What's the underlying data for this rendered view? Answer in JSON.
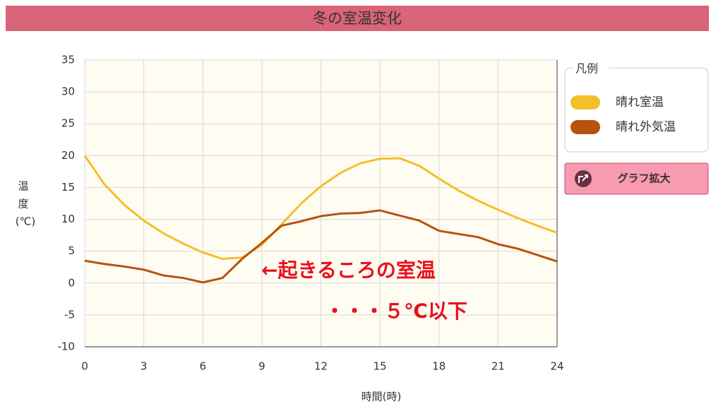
{
  "chart_data": {
    "type": "line",
    "title": "冬の室温変化",
    "x_label": "時間(時)",
    "y_label": [
      "温",
      "度",
      "(℃)"
    ],
    "x": [
      0,
      1,
      2,
      3,
      4,
      5,
      6,
      7,
      8,
      9,
      10,
      11,
      12,
      13,
      14,
      15,
      16,
      17,
      18,
      19,
      20,
      21,
      22,
      23,
      24
    ],
    "series": [
      {
        "name": "晴れ室温",
        "color": "#f2c02a",
        "values": [
          20,
          15.5,
          12.3,
          9.8,
          7.8,
          6.2,
          4.8,
          3.8,
          4.0,
          6.0,
          9.2,
          12.5,
          15.2,
          17.3,
          18.8,
          19.5,
          19.6,
          18.4,
          16.4,
          14.5,
          12.9,
          11.5,
          10.2,
          9.0,
          7.9
        ]
      },
      {
        "name": "晴れ外気温",
        "color": "#b8520f",
        "values": [
          3.5,
          3.0,
          2.6,
          2.1,
          1.2,
          0.8,
          0.1,
          0.8,
          3.8,
          6.3,
          9.0,
          9.7,
          10.5,
          10.9,
          11.0,
          11.4,
          10.6,
          9.8,
          8.2,
          7.7,
          7.2,
          6.1,
          5.4,
          4.4,
          3.4
        ]
      }
    ],
    "xlim": [
      0,
      24
    ],
    "xticks": [
      0,
      3,
      6,
      9,
      12,
      15,
      18,
      21,
      24
    ],
    "ylim": [
      -10,
      35
    ],
    "yticks": [
      -10,
      -5,
      0,
      5,
      10,
      15,
      20,
      25,
      30,
      35
    ],
    "grid": true,
    "legend_title": "凡例",
    "button": "グラフ拡大",
    "annotations": [
      "←起きるころの室温",
      "・・・５℃以下"
    ]
  }
}
